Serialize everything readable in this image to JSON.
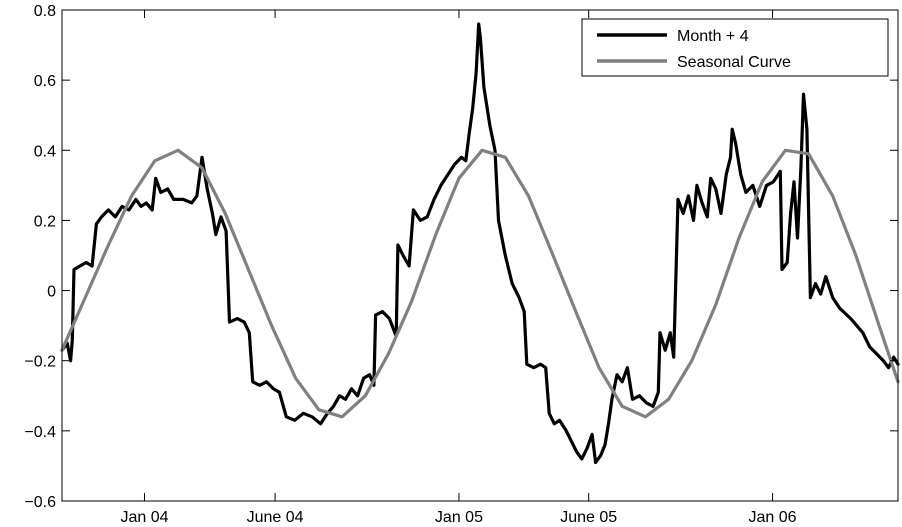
{
  "chart_data": {
    "type": "line",
    "title": "",
    "xlabel": "",
    "ylabel": "",
    "xlim": [
      "2003-09-27",
      "2006-05-27"
    ],
    "ylim": [
      -0.6,
      0.8
    ],
    "grid": false,
    "legend_placement": "top-right",
    "x_ticks": [
      {
        "date": "2004-01-01",
        "label": "Jan 04"
      },
      {
        "date": "2004-06-01",
        "label": "June 04"
      },
      {
        "date": "2005-01-01",
        "label": "Jan 05"
      },
      {
        "date": "2005-06-01",
        "label": "June 05"
      },
      {
        "date": "2006-01-01",
        "label": "Jan 06"
      }
    ],
    "y_ticks": [
      {
        "value": -0.6,
        "label": "−0.6"
      },
      {
        "value": -0.4,
        "label": "−0.4"
      },
      {
        "value": -0.2,
        "label": "−0.2"
      },
      {
        "value": 0,
        "label": "0"
      },
      {
        "value": 0.2,
        "label": "0.2"
      },
      {
        "value": 0.4,
        "label": "0.4"
      },
      {
        "value": 0.6,
        "label": "0.6"
      },
      {
        "value": 0.8,
        "label": "0.8"
      }
    ],
    "series": [
      {
        "name": "Month + 4",
        "color": "#000000",
        "points": [
          [
            "2003-09-27",
            -0.17
          ],
          [
            "2003-10-03",
            -0.15
          ],
          [
            "2003-10-07",
            -0.2
          ],
          [
            "2003-10-09",
            -0.14
          ],
          [
            "2003-10-11",
            0.06
          ],
          [
            "2003-10-18",
            0.07
          ],
          [
            "2003-10-25",
            0.08
          ],
          [
            "2003-11-01",
            0.07
          ],
          [
            "2003-11-06",
            0.19
          ],
          [
            "2003-11-12",
            0.21
          ],
          [
            "2003-11-20",
            0.23
          ],
          [
            "2003-11-28",
            0.21
          ],
          [
            "2003-12-06",
            0.24
          ],
          [
            "2003-12-14",
            0.23
          ],
          [
            "2003-12-22",
            0.26
          ],
          [
            "2003-12-28",
            0.24
          ],
          [
            "2004-01-03",
            0.25
          ],
          [
            "2004-01-10",
            0.23
          ],
          [
            "2004-01-14",
            0.32
          ],
          [
            "2004-01-20",
            0.28
          ],
          [
            "2004-01-28",
            0.29
          ],
          [
            "2004-02-04",
            0.26
          ],
          [
            "2004-02-15",
            0.26
          ],
          [
            "2004-02-25",
            0.25
          ],
          [
            "2004-03-02",
            0.27
          ],
          [
            "2004-03-08",
            0.38
          ],
          [
            "2004-03-14",
            0.29
          ],
          [
            "2004-03-20",
            0.22
          ],
          [
            "2004-03-24",
            0.16
          ],
          [
            "2004-03-30",
            0.21
          ],
          [
            "2004-04-05",
            0.17
          ],
          [
            "2004-04-09",
            -0.09
          ],
          [
            "2004-04-18",
            -0.08
          ],
          [
            "2004-04-26",
            -0.09
          ],
          [
            "2004-05-02",
            -0.12
          ],
          [
            "2004-05-06",
            -0.26
          ],
          [
            "2004-05-14",
            -0.27
          ],
          [
            "2004-05-22",
            -0.26
          ],
          [
            "2004-05-30",
            -0.28
          ],
          [
            "2004-06-06",
            -0.29
          ],
          [
            "2004-06-14",
            -0.36
          ],
          [
            "2004-06-24",
            -0.37
          ],
          [
            "2004-07-04",
            -0.35
          ],
          [
            "2004-07-14",
            -0.36
          ],
          [
            "2004-07-24",
            -0.38
          ],
          [
            "2004-08-01",
            -0.35
          ],
          [
            "2004-08-08",
            -0.33
          ],
          [
            "2004-08-15",
            -0.3
          ],
          [
            "2004-08-22",
            -0.31
          ],
          [
            "2004-08-29",
            -0.28
          ],
          [
            "2004-09-05",
            -0.3
          ],
          [
            "2004-09-12",
            -0.25
          ],
          [
            "2004-09-19",
            -0.24
          ],
          [
            "2004-09-24",
            -0.27
          ],
          [
            "2004-09-26",
            -0.07
          ],
          [
            "2004-10-04",
            -0.06
          ],
          [
            "2004-10-12",
            -0.08
          ],
          [
            "2004-10-20",
            -0.13
          ],
          [
            "2004-10-22",
            0.13
          ],
          [
            "2004-10-28",
            0.1
          ],
          [
            "2004-11-04",
            0.07
          ],
          [
            "2004-11-09",
            0.23
          ],
          [
            "2004-11-17",
            0.2
          ],
          [
            "2004-11-25",
            0.21
          ],
          [
            "2004-12-03",
            0.26
          ],
          [
            "2004-12-11",
            0.3
          ],
          [
            "2004-12-19",
            0.33
          ],
          [
            "2004-12-27",
            0.36
          ],
          [
            "2005-01-04",
            0.38
          ],
          [
            "2005-01-09",
            0.37
          ],
          [
            "2005-01-13",
            0.45
          ],
          [
            "2005-01-17",
            0.52
          ],
          [
            "2005-01-21",
            0.62
          ],
          [
            "2005-01-24",
            0.76
          ],
          [
            "2005-01-26",
            0.72
          ],
          [
            "2005-01-30",
            0.58
          ],
          [
            "2005-02-06",
            0.47
          ],
          [
            "2005-02-12",
            0.4
          ],
          [
            "2005-02-16",
            0.2
          ],
          [
            "2005-02-24",
            0.1
          ],
          [
            "2005-03-04",
            0.02
          ],
          [
            "2005-03-12",
            -0.02
          ],
          [
            "2005-03-18",
            -0.06
          ],
          [
            "2005-03-21",
            -0.21
          ],
          [
            "2005-03-29",
            -0.22
          ],
          [
            "2005-04-06",
            -0.21
          ],
          [
            "2005-04-12",
            -0.22
          ],
          [
            "2005-04-16",
            -0.35
          ],
          [
            "2005-04-22",
            -0.38
          ],
          [
            "2005-04-28",
            -0.37
          ],
          [
            "2005-05-06",
            -0.4
          ],
          [
            "2005-05-12",
            -0.43
          ],
          [
            "2005-05-18",
            -0.46
          ],
          [
            "2005-05-24",
            -0.48
          ],
          [
            "2005-05-30",
            -0.45
          ],
          [
            "2005-06-05",
            -0.41
          ],
          [
            "2005-06-09",
            -0.49
          ],
          [
            "2005-06-15",
            -0.47
          ],
          [
            "2005-06-20",
            -0.44
          ],
          [
            "2005-06-24",
            -0.38
          ],
          [
            "2005-06-28",
            -0.31
          ],
          [
            "2005-07-04",
            -0.24
          ],
          [
            "2005-07-10",
            -0.26
          ],
          [
            "2005-07-16",
            -0.22
          ],
          [
            "2005-07-22",
            -0.31
          ],
          [
            "2005-07-30",
            -0.3
          ],
          [
            "2005-08-07",
            -0.32
          ],
          [
            "2005-08-15",
            -0.33
          ],
          [
            "2005-08-21",
            -0.29
          ],
          [
            "2005-08-23",
            -0.12
          ],
          [
            "2005-08-29",
            -0.17
          ],
          [
            "2005-09-04",
            -0.12
          ],
          [
            "2005-09-08",
            -0.19
          ],
          [
            "2005-09-13",
            0.26
          ],
          [
            "2005-09-19",
            0.22
          ],
          [
            "2005-09-25",
            0.27
          ],
          [
            "2005-10-01",
            0.2
          ],
          [
            "2005-10-05",
            0.3
          ],
          [
            "2005-10-11",
            0.25
          ],
          [
            "2005-10-17",
            0.21
          ],
          [
            "2005-10-21",
            0.32
          ],
          [
            "2005-10-27",
            0.29
          ],
          [
            "2005-11-02",
            0.22
          ],
          [
            "2005-11-08",
            0.33
          ],
          [
            "2005-11-13",
            0.38
          ],
          [
            "2005-11-15",
            0.46
          ],
          [
            "2005-11-19",
            0.42
          ],
          [
            "2005-11-25",
            0.33
          ],
          [
            "2005-12-01",
            0.28
          ],
          [
            "2005-12-09",
            0.3
          ],
          [
            "2005-12-17",
            0.24
          ],
          [
            "2005-12-25",
            0.3
          ],
          [
            "2006-01-02",
            0.31
          ],
          [
            "2006-01-10",
            0.34
          ],
          [
            "2006-01-12",
            0.06
          ],
          [
            "2006-01-18",
            0.08
          ],
          [
            "2006-01-22",
            0.22
          ],
          [
            "2006-01-26",
            0.31
          ],
          [
            "2006-01-30",
            0.15
          ],
          [
            "2006-02-03",
            0.35
          ],
          [
            "2006-02-06",
            0.56
          ],
          [
            "2006-02-10",
            0.46
          ],
          [
            "2006-02-14",
            -0.02
          ],
          [
            "2006-02-20",
            0.02
          ],
          [
            "2006-02-26",
            -0.01
          ],
          [
            "2006-03-04",
            0.04
          ],
          [
            "2006-03-12",
            -0.02
          ],
          [
            "2006-03-20",
            -0.05
          ],
          [
            "2006-04-02",
            -0.08
          ],
          [
            "2006-04-16",
            -0.12
          ],
          [
            "2006-04-24",
            -0.16
          ],
          [
            "2006-05-02",
            -0.18
          ],
          [
            "2006-05-10",
            -0.2
          ],
          [
            "2006-05-16",
            -0.22
          ],
          [
            "2006-05-22",
            -0.19
          ],
          [
            "2006-05-27",
            -0.21
          ]
        ]
      },
      {
        "name": "Seasonal Curve",
        "color": "#808080",
        "points": [
          [
            "2003-09-27",
            -0.17
          ],
          [
            "2003-10-24",
            -0.02
          ],
          [
            "2003-11-20",
            0.13
          ],
          [
            "2003-12-17",
            0.27
          ],
          [
            "2004-01-13",
            0.37
          ],
          [
            "2004-02-09",
            0.4
          ],
          [
            "2004-03-08",
            0.35
          ],
          [
            "2004-04-04",
            0.22
          ],
          [
            "2004-05-01",
            0.06
          ],
          [
            "2004-05-28",
            -0.1
          ],
          [
            "2004-06-25",
            -0.25
          ],
          [
            "2004-07-22",
            -0.34
          ],
          [
            "2004-08-18",
            -0.36
          ],
          [
            "2004-09-14",
            -0.3
          ],
          [
            "2004-10-11",
            -0.18
          ],
          [
            "2004-11-07",
            -0.03
          ],
          [
            "2004-12-05",
            0.16
          ],
          [
            "2005-01-01",
            0.32
          ],
          [
            "2005-01-28",
            0.4
          ],
          [
            "2005-02-24",
            0.38
          ],
          [
            "2005-03-23",
            0.27
          ],
          [
            "2005-04-19",
            0.11
          ],
          [
            "2005-05-17",
            -0.06
          ],
          [
            "2005-06-13",
            -0.22
          ],
          [
            "2005-07-10",
            -0.33
          ],
          [
            "2005-08-06",
            -0.36
          ],
          [
            "2005-09-02",
            -0.31
          ],
          [
            "2005-09-29",
            -0.2
          ],
          [
            "2005-10-27",
            -0.04
          ],
          [
            "2005-11-23",
            0.15
          ],
          [
            "2005-12-20",
            0.31
          ],
          [
            "2006-01-16",
            0.4
          ],
          [
            "2006-02-12",
            0.39
          ],
          [
            "2006-03-12",
            0.27
          ],
          [
            "2006-04-08",
            0.1
          ],
          [
            "2006-05-05",
            -0.1
          ],
          [
            "2006-05-27",
            -0.26
          ]
        ]
      }
    ]
  }
}
